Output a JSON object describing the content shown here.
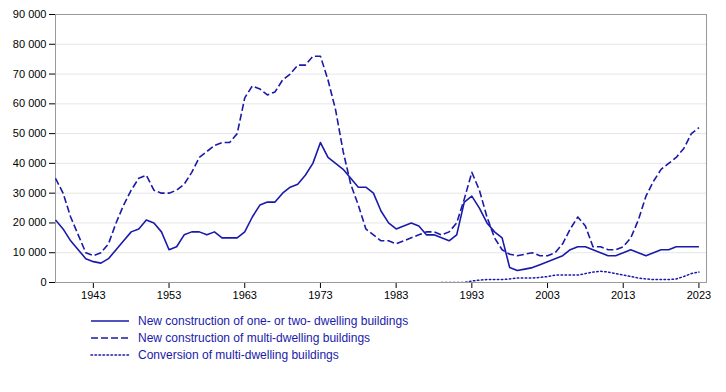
{
  "chart_data": {
    "type": "line",
    "color": "#1a1aaa",
    "grid": true,
    "xlim": [
      1938,
      2024
    ],
    "xticks": [
      1943,
      1953,
      1963,
      1973,
      1983,
      1993,
      2003,
      2013,
      2023
    ],
    "ylim": [
      0,
      90000
    ],
    "yticks": [
      0,
      {
        "value": 10000,
        "label": "10 000"
      },
      {
        "value": 20000,
        "label": "20 000"
      },
      {
        "value": 30000,
        "label": "30 000"
      },
      {
        "value": 40000,
        "label": "40 000"
      },
      {
        "value": 50000,
        "label": "50 000"
      },
      {
        "value": 60000,
        "label": "60 000"
      },
      {
        "value": 70000,
        "label": "70 000"
      },
      {
        "value": 80000,
        "label": "80 000"
      },
      {
        "value": 90000,
        "label": "90 000"
      }
    ],
    "series": [
      {
        "name": "New construction of one- or two- dwelling buildings",
        "line_style": "solid",
        "x": [
          1938,
          1939,
          1940,
          1941,
          1942,
          1943,
          1944,
          1945,
          1946,
          1947,
          1948,
          1949,
          1950,
          1951,
          1952,
          1953,
          1954,
          1955,
          1956,
          1957,
          1958,
          1959,
          1960,
          1961,
          1962,
          1963,
          1964,
          1965,
          1966,
          1967,
          1968,
          1969,
          1970,
          1971,
          1972,
          1973,
          1974,
          1975,
          1976,
          1977,
          1978,
          1979,
          1980,
          1981,
          1982,
          1983,
          1984,
          1985,
          1986,
          1987,
          1988,
          1989,
          1990,
          1991,
          1992,
          1993,
          1994,
          1995,
          1996,
          1997,
          1998,
          1999,
          2000,
          2001,
          2002,
          2003,
          2004,
          2005,
          2006,
          2007,
          2008,
          2009,
          2010,
          2011,
          2012,
          2013,
          2014,
          2015,
          2016,
          2017,
          2018,
          2019,
          2020,
          2021,
          2022,
          2023
        ],
        "values": [
          21000,
          18000,
          14000,
          11000,
          8000,
          7000,
          6500,
          8000,
          11000,
          14000,
          17000,
          18000,
          21000,
          20000,
          17000,
          11000,
          12000,
          16000,
          17000,
          17000,
          16000,
          17000,
          15000,
          15000,
          15000,
          17000,
          22000,
          26000,
          27000,
          27000,
          30000,
          32000,
          33000,
          36000,
          40000,
          47000,
          42000,
          40000,
          38000,
          35000,
          32000,
          32000,
          30000,
          24000,
          20000,
          18000,
          19000,
          20000,
          19000,
          16000,
          16000,
          15000,
          14000,
          16000,
          27000,
          29000,
          25000,
          20000,
          17000,
          15000,
          5000,
          4000,
          4500,
          5000,
          6000,
          7000,
          8000,
          9000,
          11000,
          12000,
          12000,
          11000,
          10000,
          9000,
          9000,
          10000,
          11000,
          10000,
          9000,
          10000,
          11000,
          11000,
          12000,
          12000,
          12000,
          12000
        ]
      },
      {
        "name": "New construction of multi-dwelling buildings",
        "line_style": "dashed",
        "x": [
          1938,
          1939,
          1940,
          1941,
          1942,
          1943,
          1944,
          1945,
          1946,
          1947,
          1948,
          1949,
          1950,
          1951,
          1952,
          1953,
          1954,
          1955,
          1956,
          1957,
          1958,
          1959,
          1960,
          1961,
          1962,
          1963,
          1964,
          1965,
          1966,
          1967,
          1968,
          1969,
          1970,
          1971,
          1972,
          1973,
          1974,
          1975,
          1976,
          1977,
          1978,
          1979,
          1980,
          1981,
          1982,
          1983,
          1984,
          1985,
          1986,
          1987,
          1988,
          1989,
          1990,
          1991,
          1992,
          1993,
          1994,
          1995,
          1996,
          1997,
          1998,
          1999,
          2000,
          2001,
          2002,
          2003,
          2004,
          2005,
          2006,
          2007,
          2008,
          2009,
          2010,
          2011,
          2012,
          2013,
          2014,
          2015,
          2016,
          2017,
          2018,
          2019,
          2020,
          2021,
          2022,
          2023
        ],
        "values": [
          35000,
          30000,
          22000,
          16000,
          10000,
          9000,
          10000,
          13000,
          20000,
          26000,
          31000,
          35000,
          36000,
          31000,
          30000,
          30000,
          31000,
          33000,
          37000,
          42000,
          44000,
          46000,
          47000,
          47000,
          50000,
          62000,
          66000,
          65000,
          63000,
          64000,
          68000,
          70000,
          73000,
          73000,
          76000,
          76000,
          68000,
          58000,
          44000,
          33000,
          26000,
          18000,
          16000,
          14000,
          14000,
          13000,
          14000,
          15000,
          16000,
          17000,
          17000,
          16000,
          17000,
          20000,
          28000,
          37000,
          31000,
          22000,
          15000,
          11000,
          9500,
          9000,
          9500,
          10000,
          9000,
          9000,
          10000,
          13000,
          18000,
          22000,
          19000,
          12000,
          12000,
          11000,
          11000,
          12000,
          15000,
          21000,
          29000,
          34000,
          38000,
          40000,
          42000,
          45000,
          50000,
          52000
        ]
      },
      {
        "name": "Conversion of multi-dwelling buildings",
        "line_style": "dotted",
        "x": [
          1989,
          1990,
          1991,
          1992,
          1993,
          1994,
          1995,
          1996,
          1997,
          1998,
          1999,
          2000,
          2001,
          2002,
          2003,
          2004,
          2005,
          2006,
          2007,
          2008,
          2009,
          2010,
          2011,
          2012,
          2013,
          2014,
          2015,
          2016,
          2017,
          2018,
          2019,
          2020,
          2021,
          2022,
          2023
        ],
        "values": [
          0,
          0,
          0,
          0,
          500,
          800,
          1000,
          1000,
          1000,
          1200,
          1500,
          1500,
          1500,
          1700,
          2000,
          2500,
          2500,
          2500,
          2500,
          3000,
          3500,
          3800,
          3500,
          3000,
          2500,
          2000,
          1500,
          1200,
          1000,
          1000,
          1000,
          1200,
          2000,
          3000,
          3500
        ]
      }
    ]
  }
}
